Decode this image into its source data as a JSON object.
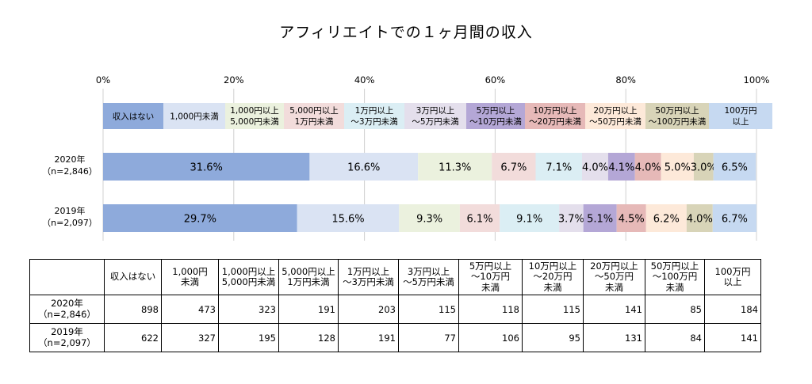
{
  "title": "アフィリエイトでの１ヶ月間の収入",
  "chart_data": {
    "type": "bar",
    "stacked": true,
    "orientation": "horizontal",
    "percent_axis": {
      "min": 0,
      "max": 100,
      "ticks": [
        "0%",
        "20%",
        "40%",
        "60%",
        "80%",
        "100%"
      ]
    },
    "categories": [
      "収入はない",
      "1,000円未満",
      "1,000円以上\n5,000円未満",
      "5,000円以上\n1万円未満",
      "1万円以上\n〜3万円未満",
      "3万円以上\n〜5万円未満",
      "5万円以上\n〜10万円未満",
      "10万円以上\n〜20万円未満",
      "20万円以上\n〜50万円未満",
      "50万円以上\n〜100万円未満",
      "100万円\n以上"
    ],
    "colors": [
      "#8eaadb",
      "#dae3f3",
      "#ebf1de",
      "#f2dcdb",
      "#dbeef4",
      "#e4dfec",
      "#b4a7d6",
      "#e6b9b8",
      "#fde9d9",
      "#d8d4b8",
      "#c6d9f1"
    ],
    "series": [
      {
        "name": "2020年\n（n=2,846）",
        "values": [
          31.6,
          16.6,
          11.3,
          6.7,
          7.1,
          4.0,
          4.1,
          4.0,
          5.0,
          3.0,
          6.5
        ],
        "labels": [
          "31.6%",
          "16.6%",
          "11.3%",
          "6.7%",
          "7.1%",
          "4.0%",
          "4.1%",
          "4.0%",
          "5.0%",
          "3.0%",
          "6.5%"
        ]
      },
      {
        "name": "2019年\n（n=2,097）",
        "values": [
          29.7,
          15.6,
          9.3,
          6.1,
          9.1,
          3.7,
          5.1,
          4.5,
          6.2,
          4.0,
          6.7
        ],
        "labels": [
          "29.7%",
          "15.6%",
          "9.3%",
          "6.1%",
          "9.1%",
          "3.7%",
          "5.1%",
          "4.5%",
          "6.2%",
          "4.0%",
          "6.7%"
        ]
      }
    ],
    "grid": true
  },
  "table": {
    "headers": [
      "",
      "収入はない",
      "1,000円\n未満",
      "1,000円以上\n5,000円未満",
      "5,000円以上\n1万円未満",
      "1万円以上\n〜3万円未満",
      "3万円以上\n〜5万円未満",
      "5万円以上\n〜10万円\n未満",
      "10万円以上\n〜20万円\n未満",
      "20万円以上\n〜50万円\n未満",
      "50万円以上\n〜100万円\n未満",
      "100万円\n以上"
    ],
    "rows": [
      {
        "label": "2020年\n（n=2,846）",
        "values": [
          "898",
          "473",
          "323",
          "191",
          "203",
          "115",
          "118",
          "115",
          "141",
          "85",
          "184"
        ]
      },
      {
        "label": "2019年\n（n=2,097）",
        "values": [
          "622",
          "327",
          "195",
          "128",
          "191",
          "77",
          "106",
          "95",
          "131",
          "84",
          "141"
        ]
      }
    ]
  }
}
